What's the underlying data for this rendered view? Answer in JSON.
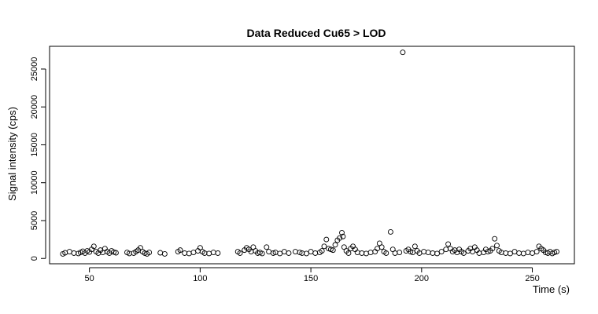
{
  "chart_data": {
    "type": "scatter",
    "title": "Data Reduced Cu65 > LOD",
    "xlabel": "Time (s)",
    "ylabel": "Signal intensity (cps)",
    "xlim": [
      32,
      269
    ],
    "ylim": [
      -700,
      28000
    ],
    "xticks": [
      50,
      100,
      150,
      200,
      250
    ],
    "yticks": [
      0,
      5000,
      10000,
      15000,
      20000,
      25000
    ],
    "grid": false,
    "marker": "open-circle",
    "marker_color": "#000000",
    "points": [
      [
        38,
        600
      ],
      [
        39,
        750
      ],
      [
        41,
        900
      ],
      [
        43,
        700
      ],
      [
        45,
        650
      ],
      [
        46,
        800
      ],
      [
        47,
        950
      ],
      [
        48,
        700
      ],
      [
        49,
        1000
      ],
      [
        50,
        850
      ],
      [
        51,
        1200
      ],
      [
        52,
        1600
      ],
      [
        53,
        900
      ],
      [
        54,
        700
      ],
      [
        55,
        1100
      ],
      [
        56,
        800
      ],
      [
        57,
        1300
      ],
      [
        58,
        900
      ],
      [
        59,
        700
      ],
      [
        60,
        1000
      ],
      [
        61,
        850
      ],
      [
        62,
        750
      ],
      [
        67,
        800
      ],
      [
        68,
        650
      ],
      [
        70,
        700
      ],
      [
        71,
        900
      ],
      [
        72,
        1100
      ],
      [
        73,
        1400
      ],
      [
        74,
        900
      ],
      [
        75,
        700
      ],
      [
        76,
        600
      ],
      [
        77,
        800
      ],
      [
        82,
        750
      ],
      [
        84,
        600
      ],
      [
        90,
        900
      ],
      [
        91,
        1100
      ],
      [
        93,
        700
      ],
      [
        95,
        650
      ],
      [
        97,
        800
      ],
      [
        99,
        1000
      ],
      [
        100,
        1400
      ],
      [
        101,
        900
      ],
      [
        102,
        700
      ],
      [
        104,
        650
      ],
      [
        106,
        800
      ],
      [
        108,
        700
      ],
      [
        117,
        900
      ],
      [
        118,
        700
      ],
      [
        120,
        1100
      ],
      [
        121,
        1400
      ],
      [
        122,
        1200
      ],
      [
        123,
        900
      ],
      [
        124,
        1500
      ],
      [
        125,
        1000
      ],
      [
        126,
        700
      ],
      [
        127,
        800
      ],
      [
        128,
        650
      ],
      [
        130,
        1500
      ],
      [
        131,
        900
      ],
      [
        133,
        700
      ],
      [
        134,
        800
      ],
      [
        136,
        650
      ],
      [
        138,
        900
      ],
      [
        140,
        700
      ],
      [
        143,
        900
      ],
      [
        145,
        800
      ],
      [
        146,
        700
      ],
      [
        148,
        650
      ],
      [
        150,
        900
      ],
      [
        152,
        700
      ],
      [
        154,
        800
      ],
      [
        155,
        1000
      ],
      [
        156,
        1600
      ],
      [
        157,
        2500
      ],
      [
        158,
        1300
      ],
      [
        159,
        1200
      ],
      [
        160,
        1100
      ],
      [
        161,
        1800
      ],
      [
        162,
        2400
      ],
      [
        163,
        2700
      ],
      [
        164,
        3400
      ],
      [
        164.5,
        2900
      ],
      [
        165,
        1500
      ],
      [
        166,
        1000
      ],
      [
        167,
        700
      ],
      [
        168,
        1300
      ],
      [
        169,
        1600
      ],
      [
        170,
        1200
      ],
      [
        171,
        800
      ],
      [
        173,
        700
      ],
      [
        175,
        650
      ],
      [
        177,
        800
      ],
      [
        179,
        900
      ],
      [
        180,
        1300
      ],
      [
        181,
        2000
      ],
      [
        182,
        1500
      ],
      [
        183,
        900
      ],
      [
        184,
        700
      ],
      [
        186,
        3500
      ],
      [
        187,
        1200
      ],
      [
        188,
        700
      ],
      [
        190,
        800
      ],
      [
        191.5,
        27200
      ],
      [
        193,
        1000
      ],
      [
        194,
        1200
      ],
      [
        195,
        900
      ],
      [
        196,
        800
      ],
      [
        197,
        1600
      ],
      [
        198,
        1000
      ],
      [
        199,
        700
      ],
      [
        201,
        900
      ],
      [
        203,
        800
      ],
      [
        205,
        700
      ],
      [
        207,
        650
      ],
      [
        209,
        900
      ],
      [
        211,
        1200
      ],
      [
        212,
        1900
      ],
      [
        213,
        1300
      ],
      [
        214,
        900
      ],
      [
        215,
        1100
      ],
      [
        216,
        800
      ],
      [
        217,
        1200
      ],
      [
        218,
        900
      ],
      [
        219,
        700
      ],
      [
        221,
        1000
      ],
      [
        222,
        1300
      ],
      [
        223,
        900
      ],
      [
        224,
        1500
      ],
      [
        225,
        1100
      ],
      [
        226,
        700
      ],
      [
        228,
        800
      ],
      [
        229,
        1200
      ],
      [
        230,
        900
      ],
      [
        231,
        1000
      ],
      [
        232,
        1300
      ],
      [
        233,
        2600
      ],
      [
        234,
        1700
      ],
      [
        235,
        1000
      ],
      [
        236,
        800
      ],
      [
        238,
        700
      ],
      [
        240,
        650
      ],
      [
        242,
        900
      ],
      [
        244,
        700
      ],
      [
        246,
        650
      ],
      [
        248,
        800
      ],
      [
        250,
        700
      ],
      [
        252,
        900
      ],
      [
        253,
        1600
      ],
      [
        254,
        1300
      ],
      [
        255,
        1100
      ],
      [
        256,
        800
      ],
      [
        257,
        700
      ],
      [
        258,
        900
      ],
      [
        259,
        650
      ],
      [
        260,
        800
      ],
      [
        261,
        900
      ]
    ]
  }
}
